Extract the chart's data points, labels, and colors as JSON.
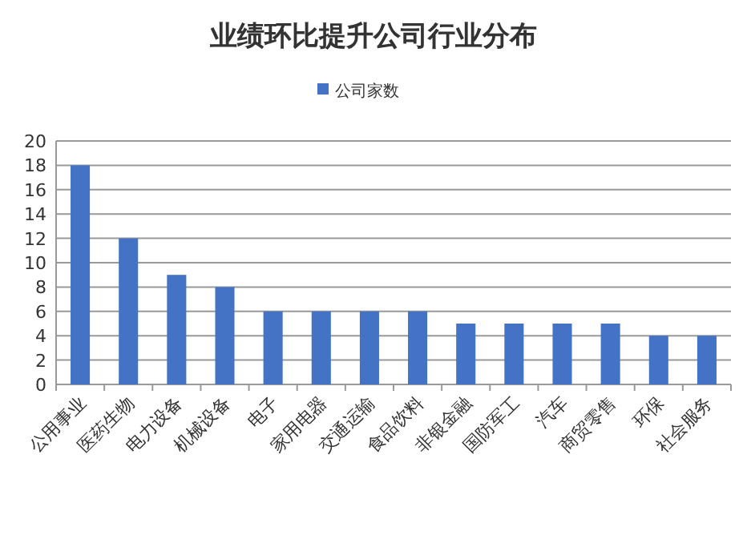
{
  "chart_data": {
    "type": "bar",
    "title": "业绩环比提升公司行业分布",
    "categories": [
      "公用事业",
      "医药生物",
      "电力设备",
      "机械设备",
      "电子",
      "家用电器",
      "交通运输",
      "食品饮料",
      "非银金融",
      "国防军工",
      "汽车",
      "商贸零售",
      "环保",
      "社会服务"
    ],
    "series": [
      {
        "name": "公司家数",
        "color": "#4472c4",
        "values": [
          18,
          12,
          9,
          8,
          6,
          6,
          6,
          6,
          5,
          5,
          5,
          5,
          4,
          4
        ]
      }
    ],
    "ylim": [
      0,
      20
    ],
    "yticks": [
      0,
      2,
      4,
      6,
      8,
      10,
      12,
      14,
      16,
      18,
      20
    ],
    "grid": "y",
    "legend": "top"
  }
}
